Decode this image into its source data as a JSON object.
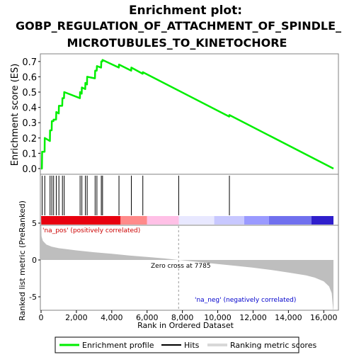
{
  "title_lines": [
    "Enrichment plot:",
    "GOBP_REGULATION_OF_ATTACHMENT_OF_SPINDLE_",
    "MICROTUBULES_TO_KINETOCHORE"
  ],
  "colors": {
    "enrichment_line": "#00ee00",
    "hit_line": "#000000",
    "metric_fill": "#bebebe",
    "axis": "#000000",
    "frame": "#808080",
    "pos_label": "#cc0000",
    "neg_label": "#0000cc"
  },
  "legend": {
    "enrichment_profile": "Enrichment profile",
    "hits": "Hits",
    "ranking_metric_scores": "Ranking metric scores"
  },
  "chart_data": [
    {
      "type": "line",
      "ylabel": "Enrichment score (ES)",
      "ylim": [
        0,
        0.75
      ],
      "xlim": [
        0,
        17000
      ],
      "yticks": [
        0.0,
        0.1,
        0.2,
        0.3,
        0.4,
        0.5,
        0.6,
        0.7
      ],
      "ytick_labels": [
        "0.0",
        "0.1",
        "0.2",
        "0.3",
        "0.4",
        "0.5",
        "0.6",
        "0.7"
      ],
      "series": [
        {
          "x": [
            0,
            50,
            60,
            200,
            210,
            500,
            510,
            600,
            610,
            700,
            710,
            850,
            860,
            1000,
            1010,
            1200,
            1210,
            1300,
            1310,
            2200,
            2210,
            2300,
            2310,
            2500,
            2510,
            2600,
            2610,
            3050,
            3060,
            3150,
            3160,
            3400,
            3410,
            3470,
            3480,
            4400,
            4410,
            5100,
            5110,
            5750,
            5760,
            10650,
            10660,
            16550
          ],
          "y": [
            0.0,
            0.0,
            0.11,
            0.11,
            0.2,
            0.18,
            0.25,
            0.25,
            0.31,
            0.31,
            0.32,
            0.32,
            0.37,
            0.36,
            0.41,
            0.41,
            0.46,
            0.46,
            0.5,
            0.46,
            0.5,
            0.49,
            0.53,
            0.52,
            0.56,
            0.55,
            0.6,
            0.59,
            0.64,
            0.64,
            0.67,
            0.66,
            0.7,
            0.7,
            0.71,
            0.66,
            0.68,
            0.64,
            0.66,
            0.62,
            0.63,
            0.34,
            0.35,
            0.0
          ]
        }
      ]
    },
    {
      "type": "hits",
      "hit_ranks": [
        60,
        210,
        510,
        610,
        710,
        860,
        1010,
        1210,
        1310,
        2210,
        2310,
        2510,
        2610,
        3060,
        3160,
        3410,
        3480,
        4410,
        5110,
        5760,
        7790,
        10660
      ]
    },
    {
      "type": "area",
      "ylabel": "Ranked list metric (PreRanked)",
      "xlabel": "Rank in Ordered Dataset",
      "ylim": [
        -8,
        6
      ],
      "xlim": [
        0,
        17000
      ],
      "yticks": [
        -5,
        0,
        5
      ],
      "ytick_labels": [
        "-5",
        "0",
        "5"
      ],
      "xticks": [
        0,
        2000,
        4000,
        6000,
        8000,
        10000,
        12000,
        14000,
        16000
      ],
      "xtick_labels": [
        "0",
        "2,000",
        "4,000",
        "6,000",
        "8,000",
        "10,000",
        "12,000",
        "14,000",
        "16,000"
      ],
      "x": [
        0,
        30,
        100,
        300,
        600,
        1000,
        2000,
        3000,
        4000,
        5000,
        6000,
        7000,
        7785,
        9000,
        10000,
        11000,
        12000,
        13000,
        14000,
        15000,
        15500,
        16000,
        16300,
        16450,
        16550
      ],
      "y": [
        6.5,
        3.2,
        2.6,
        2.1,
        1.8,
        1.6,
        1.3,
        1.05,
        0.85,
        0.6,
        0.4,
        0.2,
        0.0,
        -0.3,
        -0.55,
        -0.8,
        -1.05,
        -1.35,
        -1.7,
        -2.1,
        -2.4,
        -2.9,
        -3.6,
        -4.5,
        -7.2
      ],
      "zero_cross_label": "Zero cross at 7785",
      "zero_cross_rank": 7785,
      "pos_label": "'na_pos' (positively correlated)",
      "neg_label": "'na_neg' (negatively correlated)"
    }
  ],
  "color_bar": [
    {
      "from": 0,
      "to": 4500,
      "color": "#e8000f"
    },
    {
      "from": 4500,
      "to": 6000,
      "color": "#ff8a8a"
    },
    {
      "from": 6000,
      "to": 7800,
      "color": "#ffc0e6"
    },
    {
      "from": 7800,
      "to": 9800,
      "color": "#e8e8ff"
    },
    {
      "from": 9800,
      "to": 11500,
      "color": "#c8c8ff"
    },
    {
      "from": 11500,
      "to": 12900,
      "color": "#9a9aff"
    },
    {
      "from": 12900,
      "to": 15300,
      "color": "#7070ee"
    },
    {
      "from": 15300,
      "to": 16550,
      "color": "#2f1fcc"
    }
  ]
}
